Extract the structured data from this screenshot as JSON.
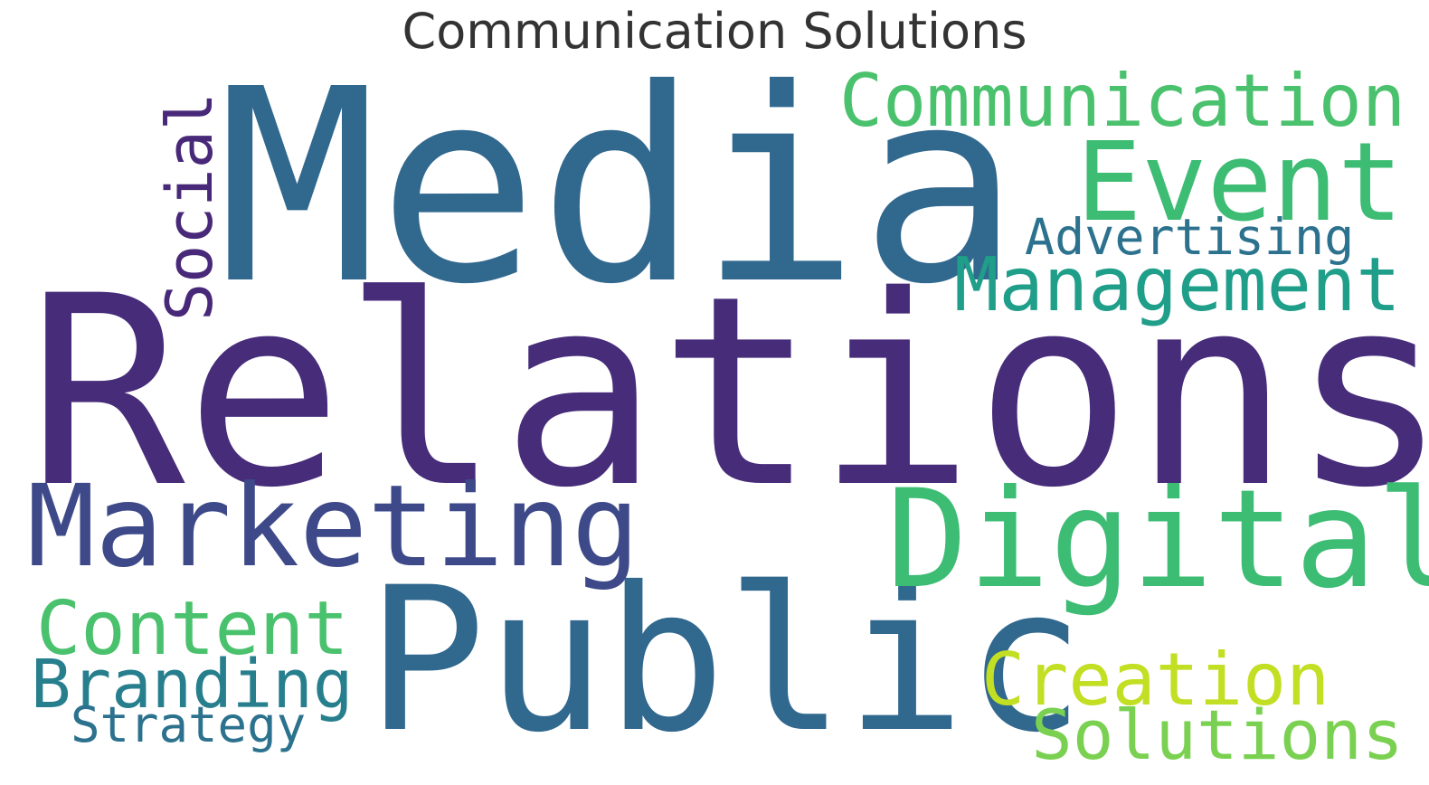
{
  "title": "Communication Solutions",
  "words": [
    {
      "id": "relations",
      "text": "Relations",
      "color": "#472c7a"
    },
    {
      "id": "media",
      "text": "Media",
      "color": "#31688e"
    },
    {
      "id": "public",
      "text": "Public",
      "color": "#31688e"
    },
    {
      "id": "marketing",
      "text": "Marketing",
      "color": "#3e4989"
    },
    {
      "id": "digital",
      "text": "Digital",
      "color": "#3dbc74"
    },
    {
      "id": "event",
      "text": "Event",
      "color": "#3dbc74"
    },
    {
      "id": "communication",
      "text": "Communication",
      "color": "#4ac16d"
    },
    {
      "id": "management",
      "text": "Management",
      "color": "#1f9e89"
    },
    {
      "id": "advertising",
      "text": "Advertising",
      "color": "#2c728e"
    },
    {
      "id": "social",
      "text": "Social",
      "color": "#482878"
    },
    {
      "id": "content",
      "text": "Content",
      "color": "#4ac16d"
    },
    {
      "id": "branding",
      "text": "Branding",
      "color": "#277f8e"
    },
    {
      "id": "strategy",
      "text": "Strategy",
      "color": "#2c728e"
    },
    {
      "id": "creation",
      "text": "Creation",
      "color": "#c2df23"
    },
    {
      "id": "solutions",
      "text": "Solutions",
      "color": "#7ad151"
    }
  ]
}
